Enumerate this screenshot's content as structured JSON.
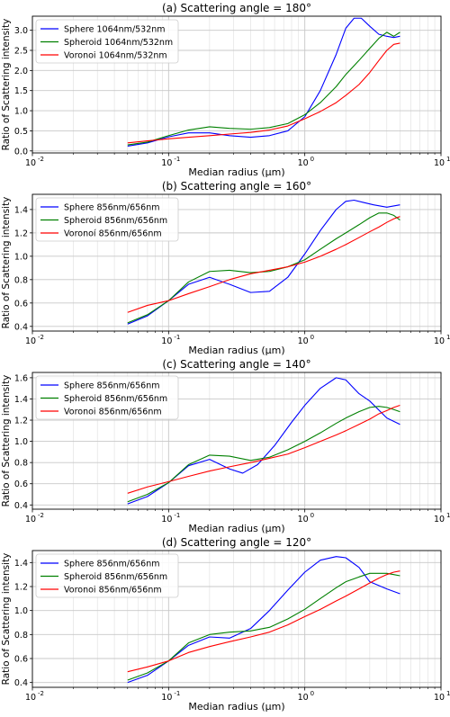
{
  "chart_data": [
    {
      "type": "line",
      "title": "(a) Scattering angle = 180",
      "title_suffix": "°",
      "xlabel": "Median radius (μm)",
      "ylabel": "Ratio of Scattering intensity",
      "xscale": "log",
      "xlim": [
        0.01,
        10
      ],
      "ylim": [
        -0.05,
        3.35
      ],
      "yticks": [
        0.0,
        0.5,
        1.0,
        1.5,
        2.0,
        2.5,
        3.0
      ],
      "ytick_labels": [
        "0.0",
        "0.5",
        "1.0",
        "1.5",
        "2.0",
        "2.5",
        "3.0"
      ],
      "xticks": [
        0.01,
        0.1,
        1,
        10
      ],
      "xtick_labels": [
        "10",
        "10",
        "10",
        "10"
      ],
      "xtick_exponents": [
        "-2",
        "-1",
        "0",
        "1"
      ],
      "grid": true,
      "legend_position": "top-left",
      "series": [
        {
          "name": "Sphere 1064nm/532nm",
          "color": "#0000ff",
          "x": [
            0.05,
            0.07,
            0.1,
            0.14,
            0.2,
            0.28,
            0.4,
            0.55,
            0.75,
            1.0,
            1.3,
            1.7,
            2.0,
            2.3,
            2.6,
            3.0,
            3.5,
            4.0,
            4.5,
            5.0
          ],
          "y": [
            0.12,
            0.2,
            0.35,
            0.45,
            0.45,
            0.38,
            0.34,
            0.38,
            0.5,
            0.85,
            1.5,
            2.4,
            3.05,
            3.3,
            3.3,
            3.1,
            2.9,
            2.85,
            2.82,
            2.85
          ]
        },
        {
          "name": "Spheroid 1064nm/532nm",
          "color": "#008000",
          "x": [
            0.05,
            0.07,
            0.1,
            0.14,
            0.2,
            0.28,
            0.4,
            0.55,
            0.75,
            1.0,
            1.3,
            1.7,
            2.0,
            2.5,
            3.0,
            3.5,
            4.0,
            4.5,
            5.0
          ],
          "y": [
            0.15,
            0.22,
            0.38,
            0.52,
            0.6,
            0.56,
            0.54,
            0.58,
            0.68,
            0.9,
            1.2,
            1.6,
            1.9,
            2.25,
            2.55,
            2.8,
            2.95,
            2.85,
            2.95
          ]
        },
        {
          "name": "Voronoi 1064nm/532nm",
          "color": "#ff0000",
          "x": [
            0.05,
            0.07,
            0.1,
            0.14,
            0.2,
            0.28,
            0.4,
            0.55,
            0.75,
            1.0,
            1.3,
            1.7,
            2.0,
            2.5,
            3.0,
            3.5,
            4.0,
            4.5,
            5.0
          ],
          "y": [
            0.2,
            0.25,
            0.3,
            0.34,
            0.38,
            0.42,
            0.46,
            0.52,
            0.62,
            0.8,
            0.98,
            1.2,
            1.38,
            1.65,
            1.95,
            2.25,
            2.5,
            2.65,
            2.68
          ]
        }
      ]
    },
    {
      "type": "line",
      "title": "(b) Scattering angle = 160",
      "title_suffix": "°",
      "xlabel": "Median radius (μm)",
      "ylabel": "Ratio of Scattering intensity",
      "xscale": "log",
      "xlim": [
        0.01,
        10
      ],
      "ylim": [
        0.36,
        1.53
      ],
      "yticks": [
        0.4,
        0.6,
        0.8,
        1.0,
        1.2,
        1.4
      ],
      "ytick_labels": [
        "0.4",
        "0.6",
        "0.8",
        "1.0",
        "1.2",
        "1.4"
      ],
      "xticks": [
        0.01,
        0.1,
        1,
        10
      ],
      "xtick_labels": [
        "10",
        "10",
        "10",
        "10"
      ],
      "xtick_exponents": [
        "-2",
        "-1",
        "0",
        "1"
      ],
      "grid": true,
      "legend_position": "top-left",
      "series": [
        {
          "name": "Sphere 856nm/656nm",
          "color": "#0000ff",
          "x": [
            0.05,
            0.07,
            0.1,
            0.14,
            0.2,
            0.28,
            0.4,
            0.55,
            0.75,
            1.0,
            1.3,
            1.7,
            2.0,
            2.3,
            2.7,
            3.2,
            4.0,
            5.0
          ],
          "y": [
            0.42,
            0.49,
            0.62,
            0.76,
            0.82,
            0.76,
            0.69,
            0.7,
            0.82,
            1.02,
            1.22,
            1.4,
            1.47,
            1.48,
            1.46,
            1.44,
            1.42,
            1.44
          ]
        },
        {
          "name": "Spheroid 856nm/656nm",
          "color": "#008000",
          "x": [
            0.05,
            0.07,
            0.1,
            0.14,
            0.2,
            0.28,
            0.4,
            0.55,
            0.75,
            1.0,
            1.3,
            1.7,
            2.0,
            2.5,
            3.0,
            3.5,
            4.0,
            4.5,
            5.0
          ],
          "y": [
            0.43,
            0.5,
            0.62,
            0.78,
            0.87,
            0.88,
            0.86,
            0.87,
            0.91,
            0.97,
            1.06,
            1.15,
            1.2,
            1.27,
            1.33,
            1.37,
            1.37,
            1.35,
            1.31
          ]
        },
        {
          "name": "Voronoí 856nm/656nm",
          "color": "#ff0000",
          "x": [
            0.05,
            0.07,
            0.1,
            0.14,
            0.2,
            0.28,
            0.4,
            0.55,
            0.75,
            1.0,
            1.3,
            1.7,
            2.0,
            2.5,
            3.0,
            3.5,
            4.0,
            4.5,
            5.0
          ],
          "y": [
            0.52,
            0.58,
            0.62,
            0.68,
            0.74,
            0.8,
            0.85,
            0.88,
            0.91,
            0.95,
            1.0,
            1.06,
            1.1,
            1.16,
            1.21,
            1.25,
            1.29,
            1.32,
            1.34
          ]
        }
      ]
    },
    {
      "type": "line",
      "title": "(c) Scattering angle = 140",
      "title_suffix": "°",
      "xlabel": "Median radius (μm)",
      "ylabel": "Ratio of Scattering intensity",
      "xscale": "log",
      "xlim": [
        0.01,
        10
      ],
      "ylim": [
        0.36,
        1.65
      ],
      "yticks": [
        0.4,
        0.6,
        0.8,
        1.0,
        1.2,
        1.4,
        1.6
      ],
      "ytick_labels": [
        "0.4",
        "0.6",
        "0.8",
        "1.0",
        "1.2",
        "1.4",
        "1.6"
      ],
      "xticks": [
        0.01,
        0.1,
        1,
        10
      ],
      "xtick_labels": [
        "10",
        "10",
        "10",
        "10"
      ],
      "xtick_exponents": [
        "-2",
        "-1",
        "0",
        "1"
      ],
      "grid": true,
      "legend_position": "top-left",
      "series": [
        {
          "name": "Sphere 856nm/656nm",
          "color": "#0000ff",
          "x": [
            0.05,
            0.07,
            0.1,
            0.14,
            0.2,
            0.28,
            0.35,
            0.45,
            0.6,
            0.8,
            1.0,
            1.3,
            1.7,
            2.0,
            2.5,
            3.0,
            4.0,
            5.0
          ],
          "y": [
            0.41,
            0.48,
            0.61,
            0.77,
            0.83,
            0.74,
            0.7,
            0.78,
            0.96,
            1.18,
            1.34,
            1.5,
            1.6,
            1.58,
            1.45,
            1.38,
            1.22,
            1.16
          ]
        },
        {
          "name": "Spheroid 856nm/656nm",
          "color": "#008000",
          "x": [
            0.05,
            0.07,
            0.1,
            0.14,
            0.2,
            0.28,
            0.4,
            0.55,
            0.75,
            1.0,
            1.3,
            1.7,
            2.0,
            2.5,
            3.0,
            3.5,
            4.0,
            4.5,
            5.0
          ],
          "y": [
            0.43,
            0.5,
            0.61,
            0.78,
            0.87,
            0.86,
            0.82,
            0.85,
            0.92,
            1.0,
            1.08,
            1.17,
            1.22,
            1.28,
            1.32,
            1.33,
            1.32,
            1.3,
            1.28
          ]
        },
        {
          "name": "Voronoi 856nm/656nm",
          "color": "#ff0000",
          "x": [
            0.05,
            0.07,
            0.1,
            0.14,
            0.2,
            0.28,
            0.4,
            0.55,
            0.75,
            1.0,
            1.3,
            1.7,
            2.0,
            2.5,
            3.0,
            3.5,
            4.0,
            4.5,
            5.0
          ],
          "y": [
            0.51,
            0.57,
            0.62,
            0.67,
            0.72,
            0.76,
            0.8,
            0.84,
            0.88,
            0.94,
            1.0,
            1.06,
            1.1,
            1.16,
            1.21,
            1.26,
            1.29,
            1.32,
            1.34
          ]
        }
      ]
    },
    {
      "type": "line",
      "title": "(d) Scattering angle = 120",
      "title_suffix": "°",
      "xlabel": "Median radius (μm)",
      "ylabel": "Ratio of Scattering intensity",
      "xscale": "log",
      "xlim": [
        0.01,
        10
      ],
      "ylim": [
        0.36,
        1.5
      ],
      "yticks": [
        0.4,
        0.6,
        0.8,
        1.0,
        1.2,
        1.4
      ],
      "ytick_labels": [
        "0.4",
        "0.6",
        "0.8",
        "1.0",
        "1.2",
        "1.4"
      ],
      "xticks": [
        0.01,
        0.1,
        1,
        10
      ],
      "xtick_labels": [
        "10",
        "10",
        "10",
        "10"
      ],
      "xtick_exponents": [
        "-2",
        "-1",
        "0",
        "1"
      ],
      "grid": true,
      "legend_position": "top-left",
      "series": [
        {
          "name": "Sphere 856nm/656nm",
          "color": "#0000ff",
          "x": [
            0.05,
            0.07,
            0.1,
            0.14,
            0.2,
            0.28,
            0.4,
            0.55,
            0.75,
            1.0,
            1.3,
            1.7,
            2.0,
            2.5,
            3.0,
            4.0,
            5.0
          ],
          "y": [
            0.4,
            0.46,
            0.58,
            0.71,
            0.78,
            0.77,
            0.85,
            1.0,
            1.17,
            1.32,
            1.42,
            1.45,
            1.44,
            1.36,
            1.24,
            1.18,
            1.14
          ]
        },
        {
          "name": "Spheroid 856nm/656nm",
          "color": "#008000",
          "x": [
            0.05,
            0.07,
            0.1,
            0.14,
            0.2,
            0.28,
            0.4,
            0.55,
            0.75,
            1.0,
            1.3,
            1.7,
            2.0,
            2.5,
            3.0,
            3.5,
            4.0,
            4.5,
            5.0
          ],
          "y": [
            0.42,
            0.48,
            0.58,
            0.73,
            0.8,
            0.82,
            0.83,
            0.86,
            0.93,
            1.01,
            1.1,
            1.19,
            1.24,
            1.28,
            1.31,
            1.31,
            1.31,
            1.3,
            1.29
          ]
        },
        {
          "name": "Voronoi 856nm/656nm",
          "color": "#ff0000",
          "x": [
            0.05,
            0.07,
            0.1,
            0.14,
            0.2,
            0.28,
            0.4,
            0.55,
            0.75,
            1.0,
            1.3,
            1.7,
            2.0,
            2.5,
            3.0,
            3.5,
            4.0,
            4.5,
            5.0
          ],
          "y": [
            0.49,
            0.53,
            0.58,
            0.65,
            0.7,
            0.74,
            0.78,
            0.82,
            0.88,
            0.95,
            1.01,
            1.08,
            1.12,
            1.18,
            1.23,
            1.27,
            1.3,
            1.32,
            1.33
          ]
        }
      ]
    }
  ]
}
